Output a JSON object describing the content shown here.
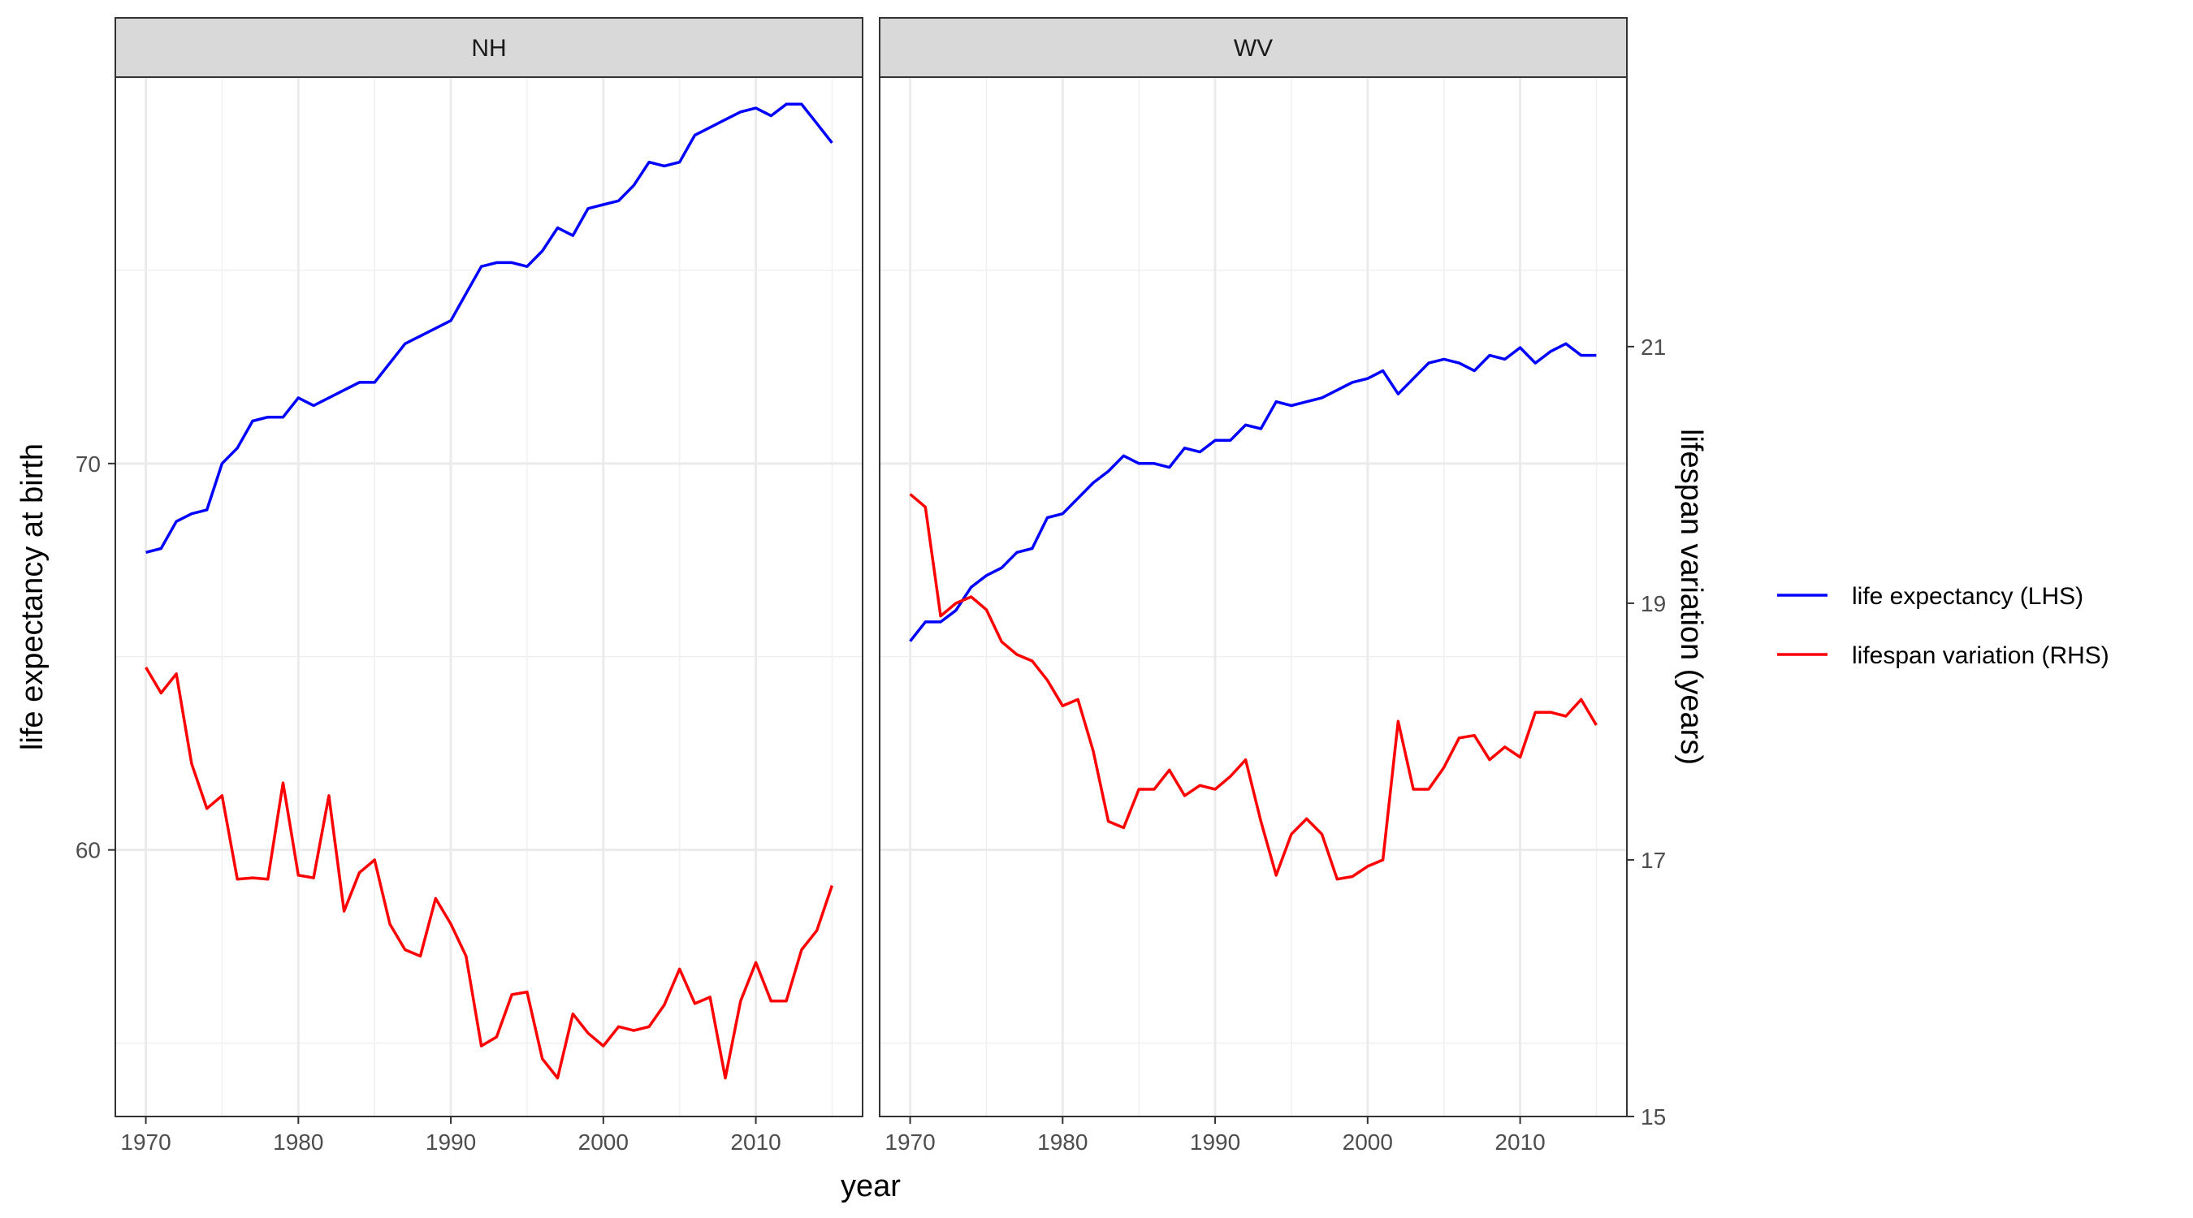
{
  "chart_data": {
    "type": "line",
    "xlabel": "year",
    "ylabel_left": "life expectancy at birth",
    "ylabel_right": "lifespan variation (years)",
    "x_ticks": [
      1970,
      1980,
      1990,
      2000,
      2010
    ],
    "y_left_ticks": [
      60,
      70
    ],
    "y_right_ticks": [
      15,
      17,
      19,
      21
    ],
    "xlim": [
      1968,
      2017
    ],
    "ylim_left": [
      53.1,
      80.0
    ],
    "ylim_right": [
      15.0,
      23.1
    ],
    "grid": true,
    "legend_position": "right",
    "legend": [
      {
        "label": "life expectancy (LHS)",
        "color": "#0000ff"
      },
      {
        "label": "lifespan variation (RHS)",
        "color": "#ff0000"
      }
    ],
    "panels": [
      {
        "name": "NH",
        "series": [
          {
            "name": "life expectancy (LHS)",
            "axis": "left",
            "color": "#0000ff",
            "x": [
              1970,
              1971,
              1972,
              1973,
              1974,
              1975,
              1976,
              1977,
              1978,
              1979,
              1980,
              1981,
              1982,
              1983,
              1984,
              1985,
              1986,
              1987,
              1988,
              1989,
              1990,
              1991,
              1992,
              1993,
              1994,
              1995,
              1996,
              1997,
              1998,
              1999,
              2000,
              2001,
              2002,
              2003,
              2004,
              2005,
              2006,
              2007,
              2008,
              2009,
              2010,
              2011,
              2012,
              2013,
              2014,
              2015
            ],
            "y": [
              67.7,
              67.8,
              68.5,
              68.7,
              68.8,
              70.0,
              70.4,
              71.1,
              71.2,
              71.2,
              71.7,
              71.5,
              71.7,
              71.9,
              72.1,
              72.1,
              72.6,
              73.1,
              73.3,
              73.5,
              73.7,
              74.4,
              75.1,
              75.2,
              75.2,
              75.1,
              75.5,
              76.1,
              75.9,
              76.6,
              76.7,
              76.8,
              77.2,
              77.8,
              77.7,
              77.8,
              78.5,
              78.7,
              78.9,
              79.1,
              79.2,
              79.0,
              79.3,
              79.3,
              78.8,
              78.3
            ]
          },
          {
            "name": "lifespan variation (RHS)",
            "axis": "right",
            "color": "#ff0000",
            "x": [
              1970,
              1971,
              1972,
              1973,
              1974,
              1975,
              1976,
              1977,
              1978,
              1979,
              1980,
              1981,
              1982,
              1983,
              1984,
              1985,
              1986,
              1987,
              1988,
              1989,
              1990,
              1991,
              1992,
              1993,
              1994,
              1995,
              1996,
              1997,
              1998,
              1999,
              2000,
              2001,
              2002,
              2003,
              2004,
              2005,
              2006,
              2007,
              2008,
              2009,
              2010,
              2011,
              2012,
              2013,
              2014,
              2015
            ],
            "y": [
              18.5,
              18.3,
              18.45,
              17.75,
              17.4,
              17.5,
              16.85,
              16.86,
              16.85,
              17.6,
              16.88,
              16.86,
              17.5,
              16.6,
              16.9,
              17.0,
              16.5,
              16.3,
              16.25,
              16.7,
              16.5,
              16.25,
              15.55,
              15.62,
              15.95,
              15.97,
              15.45,
              15.3,
              15.8,
              15.65,
              15.55,
              15.7,
              15.67,
              15.7,
              15.87,
              16.15,
              15.88,
              15.93,
              15.3,
              15.9,
              16.2,
              15.9,
              15.9,
              16.3,
              16.45,
              16.8
            ]
          }
        ]
      },
      {
        "name": "WV",
        "series": [
          {
            "name": "life expectancy (LHS)",
            "axis": "left",
            "color": "#0000ff",
            "x": [
              1970,
              1971,
              1972,
              1973,
              1974,
              1975,
              1976,
              1977,
              1978,
              1979,
              1980,
              1981,
              1982,
              1983,
              1984,
              1985,
              1986,
              1987,
              1988,
              1989,
              1990,
              1991,
              1992,
              1993,
              1994,
              1995,
              1996,
              1997,
              1998,
              1999,
              2000,
              2001,
              2002,
              2003,
              2004,
              2005,
              2006,
              2007,
              2008,
              2009,
              2010,
              2011,
              2012,
              2013,
              2014,
              2015
            ],
            "y": [
              65.4,
              65.9,
              65.9,
              66.2,
              66.8,
              67.1,
              67.3,
              67.7,
              67.8,
              68.6,
              68.7,
              69.1,
              69.5,
              69.8,
              70.2,
              70.0,
              70.0,
              69.9,
              70.4,
              70.3,
              70.6,
              70.6,
              71.0,
              70.9,
              71.6,
              71.5,
              71.6,
              71.7,
              71.9,
              72.1,
              72.2,
              72.4,
              71.8,
              72.2,
              72.6,
              72.7,
              72.6,
              72.4,
              72.8,
              72.7,
              73.0,
              72.6,
              72.9,
              73.1,
              72.8,
              72.8
            ]
          },
          {
            "name": "lifespan variation (RHS)",
            "axis": "right",
            "color": "#ff0000",
            "x": [
              1970,
              1971,
              1972,
              1973,
              1974,
              1975,
              1976,
              1977,
              1978,
              1979,
              1980,
              1981,
              1982,
              1983,
              1984,
              1985,
              1986,
              1987,
              1988,
              1989,
              1990,
              1991,
              1992,
              1993,
              1994,
              1995,
              1996,
              1997,
              1998,
              1999,
              2000,
              2001,
              2002,
              2003,
              2004,
              2005,
              2006,
              2007,
              2008,
              2009,
              2010,
              2011,
              2012,
              2013,
              2014,
              2015
            ],
            "y": [
              19.85,
              19.75,
              18.9,
              19.0,
              19.05,
              18.95,
              18.7,
              18.6,
              18.55,
              18.4,
              18.2,
              18.25,
              17.85,
              17.3,
              17.25,
              17.55,
              17.55,
              17.7,
              17.5,
              17.58,
              17.55,
              17.65,
              17.78,
              17.3,
              16.88,
              17.2,
              17.32,
              17.2,
              16.85,
              16.87,
              16.95,
              17.0,
              18.08,
              17.55,
              17.55,
              17.72,
              17.95,
              17.97,
              17.78,
              17.88,
              17.8,
              18.15,
              18.15,
              18.12,
              18.25,
              18.05
            ]
          }
        ]
      }
    ]
  }
}
